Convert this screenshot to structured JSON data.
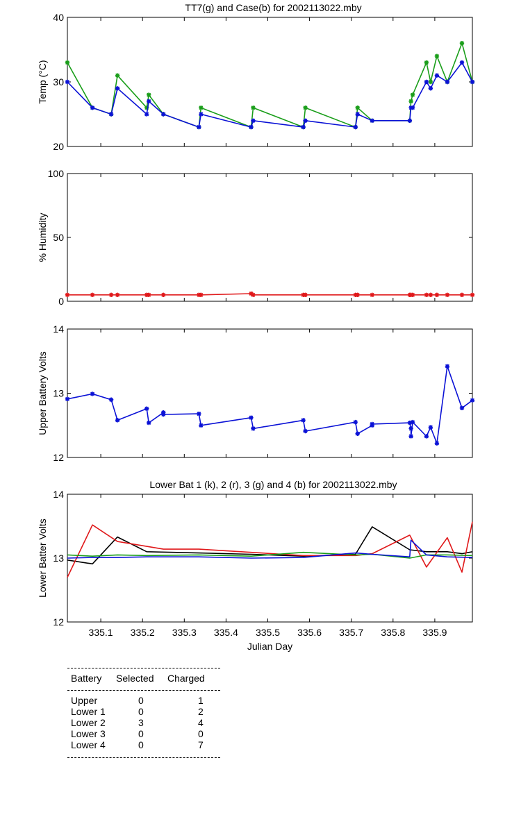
{
  "colors": {
    "green": "#1a9e1a",
    "blue": "#0b12d6",
    "red": "#e0191b",
    "black": "#000000"
  },
  "chart_data": [
    {
      "type": "line",
      "title": "TT7(g) and Case(b) for 2002113022.mby",
      "xlabel": "",
      "ylabel": "Temp  (°C)",
      "xlim": [
        335.02,
        335.99
      ],
      "ylim": [
        20,
        40
      ],
      "yticks": [
        20,
        30,
        40
      ],
      "xticks": [
        335.1,
        335.2,
        335.3,
        335.4,
        335.5,
        335.6,
        335.7,
        335.8,
        335.9
      ],
      "series": [
        {
          "name": "TT7",
          "color": "green",
          "marker": "*",
          "x": [
            335.02,
            335.08,
            335.125,
            335.14,
            335.21,
            335.215,
            335.25,
            335.335,
            335.34,
            335.46,
            335.465,
            335.585,
            335.59,
            335.71,
            335.715,
            335.75,
            335.84,
            335.843,
            335.847,
            335.88,
            335.89,
            335.905,
            335.93,
            335.965,
            335.99
          ],
          "y": [
            33,
            26,
            25,
            31,
            26,
            28,
            25,
            23,
            26,
            23,
            26,
            23,
            26,
            23,
            26,
            24,
            24,
            27,
            28,
            33,
            30,
            34,
            30,
            36,
            30
          ]
        },
        {
          "name": "Case",
          "color": "blue",
          "marker": "*",
          "x": [
            335.02,
            335.08,
            335.125,
            335.14,
            335.21,
            335.215,
            335.25,
            335.335,
            335.34,
            335.46,
            335.465,
            335.585,
            335.59,
            335.71,
            335.715,
            335.75,
            335.84,
            335.843,
            335.847,
            335.88,
            335.89,
            335.905,
            335.93,
            335.965,
            335.99
          ],
          "y": [
            30,
            26,
            25,
            29,
            25,
            27,
            25,
            23,
            25,
            23,
            24,
            23,
            24,
            23,
            25,
            24,
            24,
            26,
            26,
            30,
            29,
            31,
            30,
            33,
            30
          ]
        }
      ]
    },
    {
      "type": "line",
      "title": "",
      "xlabel": "",
      "ylabel": "% Humidity",
      "xlim": [
        335.02,
        335.99
      ],
      "ylim": [
        0,
        100
      ],
      "yticks": [
        0,
        50,
        100
      ],
      "xticks": [
        335.1,
        335.2,
        335.3,
        335.4,
        335.5,
        335.6,
        335.7,
        335.8,
        335.9
      ],
      "series": [
        {
          "name": "Humidity",
          "color": "red",
          "marker": "*",
          "x": [
            335.02,
            335.08,
            335.125,
            335.14,
            335.21,
            335.215,
            335.25,
            335.335,
            335.34,
            335.46,
            335.465,
            335.585,
            335.59,
            335.71,
            335.715,
            335.75,
            335.84,
            335.843,
            335.847,
            335.88,
            335.89,
            335.905,
            335.93,
            335.965,
            335.99
          ],
          "y": [
            5,
            5,
            5,
            5,
            5,
            5,
            5,
            5,
            5,
            6,
            5,
            5,
            5,
            5,
            5,
            5,
            5,
            5,
            5,
            5,
            5,
            5,
            5,
            5,
            5
          ]
        }
      ]
    },
    {
      "type": "line",
      "title": "",
      "xlabel": "",
      "ylabel": "Upper Battery Volts",
      "xlim": [
        335.02,
        335.99
      ],
      "ylim": [
        12,
        14
      ],
      "yticks": [
        12,
        13,
        14
      ],
      "xticks": [
        335.1,
        335.2,
        335.3,
        335.4,
        335.5,
        335.6,
        335.7,
        335.8,
        335.9
      ],
      "series": [
        {
          "name": "Upper",
          "color": "blue",
          "marker": "*",
          "x": [
            335.02,
            335.08,
            335.125,
            335.14,
            335.21,
            335.215,
            335.25,
            335.25,
            335.335,
            335.34,
            335.46,
            335.465,
            335.585,
            335.59,
            335.71,
            335.715,
            335.75,
            335.75,
            335.84,
            335.843,
            335.843,
            335.847,
            335.88,
            335.89,
            335.905,
            335.93,
            335.965,
            335.99
          ],
          "y": [
            12.91,
            12.99,
            12.9,
            12.58,
            12.76,
            12.54,
            12.7,
            12.67,
            12.68,
            12.5,
            12.62,
            12.45,
            12.58,
            12.41,
            12.55,
            12.37,
            12.5,
            12.52,
            12.54,
            12.45,
            12.33,
            12.55,
            12.33,
            12.47,
            12.22,
            13.42,
            12.77,
            12.89
          ]
        }
      ]
    },
    {
      "type": "line",
      "title": "Lower Bat 1 (k), 2 (r), 3 (g) and 4 (b) for 2002113022.mby",
      "xlabel": "Julian Day",
      "ylabel": "Lower Batter Volts",
      "xlim": [
        335.02,
        335.99
      ],
      "ylim": [
        12,
        14
      ],
      "yticks": [
        12,
        13,
        14
      ],
      "xticks": [
        335.1,
        335.2,
        335.3,
        335.4,
        335.5,
        335.6,
        335.7,
        335.8,
        335.9
      ],
      "xticklabels": [
        "335.1",
        "335.2",
        "335.3",
        "335.4",
        "335.5",
        "335.6",
        "335.7",
        "335.8",
        "335.9"
      ],
      "series": [
        {
          "name": "Lower 1",
          "color": "black",
          "x": [
            335.02,
            335.08,
            335.14,
            335.21,
            335.335,
            335.46,
            335.585,
            335.71,
            335.75,
            335.84,
            335.88,
            335.93,
            335.965,
            335.99
          ],
          "y": [
            12.97,
            12.91,
            13.33,
            13.1,
            13.08,
            13.06,
            13.03,
            13.06,
            13.49,
            13.13,
            13.1,
            13.1,
            13.07,
            13.1
          ]
        },
        {
          "name": "Lower 2",
          "color": "red",
          "x": [
            335.02,
            335.08,
            335.14,
            335.25,
            335.335,
            335.46,
            335.585,
            335.71,
            335.75,
            335.84,
            335.88,
            335.93,
            335.965,
            335.99
          ],
          "y": [
            12.7,
            13.52,
            13.26,
            13.14,
            13.14,
            13.09,
            13.04,
            13.04,
            13.07,
            13.36,
            12.86,
            13.32,
            12.78,
            13.57
          ]
        },
        {
          "name": "Lower 3",
          "color": "green",
          "x": [
            335.02,
            335.08,
            335.14,
            335.21,
            335.335,
            335.46,
            335.585,
            335.71,
            335.75,
            335.84,
            335.88,
            335.93,
            335.99
          ],
          "y": [
            13.05,
            13.03,
            13.05,
            13.04,
            13.05,
            13.03,
            13.09,
            13.05,
            13.06,
            13.0,
            13.05,
            13.05,
            13.04
          ]
        },
        {
          "name": "Lower 4",
          "color": "blue",
          "x": [
            335.02,
            335.08,
            335.14,
            335.21,
            335.335,
            335.46,
            335.585,
            335.71,
            335.75,
            335.84,
            335.843,
            335.88,
            335.93,
            335.99
          ],
          "y": [
            13.0,
            13.01,
            13.01,
            13.02,
            13.02,
            13.0,
            13.01,
            13.08,
            13.06,
            13.02,
            13.28,
            13.05,
            13.02,
            13.01
          ]
        }
      ]
    }
  ],
  "table": {
    "headers": {
      "battery": "Battery",
      "selected": "Selected",
      "charged": "Charged"
    },
    "rows": [
      {
        "battery": "Upper",
        "selected": "0",
        "charged": "1"
      },
      {
        "battery": "Lower 1",
        "selected": "0",
        "charged": "2"
      },
      {
        "battery": "Lower 2",
        "selected": "3",
        "charged": "4"
      },
      {
        "battery": "Lower 3",
        "selected": "0",
        "charged": "0"
      },
      {
        "battery": "Lower 4",
        "selected": "0",
        "charged": "7"
      }
    ]
  }
}
